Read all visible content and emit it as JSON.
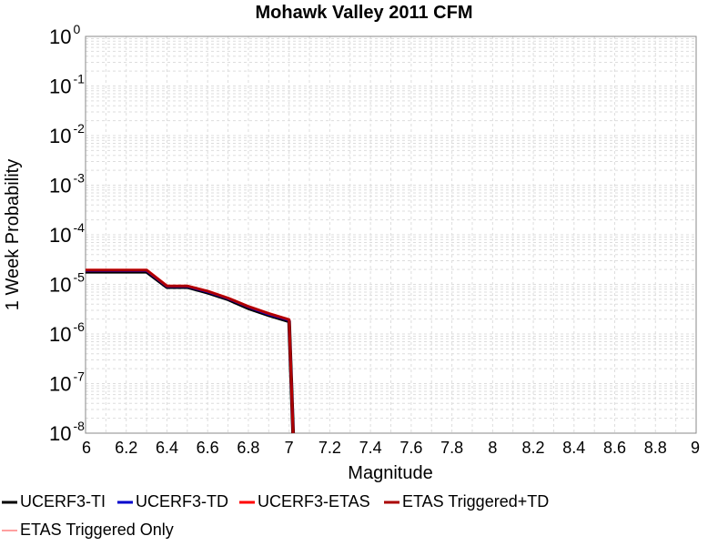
{
  "chart_data": {
    "type": "line",
    "title": "Mohawk Valley 2011 CFM",
    "xlabel": "Magnitude",
    "ylabel": "1 Week Probability",
    "xlim": [
      6,
      9
    ],
    "ylim": [
      1e-08,
      1
    ],
    "y_scale": "log",
    "x_ticks": [
      "6",
      "6.2",
      "6.4",
      "6.6",
      "6.8",
      "7",
      "7.2",
      "7.4",
      "7.6",
      "7.8",
      "8",
      "8.2",
      "8.4",
      "8.6",
      "8.8",
      "9"
    ],
    "y_ticks": [
      {
        "base": "10",
        "exp": "0"
      },
      {
        "base": "10",
        "exp": "-1"
      },
      {
        "base": "10",
        "exp": "-2"
      },
      {
        "base": "10",
        "exp": "-3"
      },
      {
        "base": "10",
        "exp": "-4"
      },
      {
        "base": "10",
        "exp": "-5"
      },
      {
        "base": "10",
        "exp": "-6"
      },
      {
        "base": "10",
        "exp": "-7"
      },
      {
        "base": "10",
        "exp": "-8"
      }
    ],
    "grid": true,
    "legend_position": "bottom",
    "series": [
      {
        "name": "UCERF3-TI",
        "color": "#000000",
        "x": [
          6.0,
          6.3,
          6.4,
          6.5,
          6.6,
          6.7,
          6.8,
          6.9,
          7.0,
          7.02
        ],
        "y": [
          1.8e-05,
          1.8e-05,
          8.8e-06,
          8.8e-06,
          6.8e-06,
          5e-06,
          3.3e-06,
          2.4e-06,
          1.8e-06,
          1e-08
        ]
      },
      {
        "name": "UCERF3-TD",
        "color": "#0000cc",
        "x": [
          6.0,
          6.3,
          6.4,
          6.5,
          6.6,
          6.7,
          6.8,
          6.9,
          7.0,
          7.02
        ],
        "y": [
          1.9e-05,
          1.9e-05,
          9.1e-06,
          9.1e-06,
          7.1e-06,
          5.2e-06,
          3.5e-06,
          2.5e-06,
          1.9e-06,
          1e-08
        ]
      },
      {
        "name": "UCERF3-ETAS",
        "color": "#ff0000",
        "x": [
          6.0,
          6.3,
          6.4,
          6.5,
          6.6,
          6.7,
          6.8,
          6.9,
          7.0,
          7.02
        ],
        "y": [
          1.95e-05,
          1.95e-05,
          9.3e-06,
          9.3e-06,
          7.3e-06,
          5.3e-06,
          3.6e-06,
          2.6e-06,
          1.95e-06,
          1e-08
        ]
      },
      {
        "name": "ETAS Triggered+TD",
        "color": "#aa0000",
        "x": [
          6.0,
          6.3,
          6.4,
          6.5,
          6.6,
          6.7,
          6.8,
          6.9,
          7.0,
          7.02
        ],
        "y": [
          1.95e-05,
          1.95e-05,
          9.3e-06,
          9.3e-06,
          7.3e-06,
          5.3e-06,
          3.6e-06,
          2.6e-06,
          1.95e-06,
          1e-08
        ]
      },
      {
        "name": "ETAS Triggered Only",
        "color": "#ff8080",
        "x": [],
        "y": []
      }
    ]
  }
}
